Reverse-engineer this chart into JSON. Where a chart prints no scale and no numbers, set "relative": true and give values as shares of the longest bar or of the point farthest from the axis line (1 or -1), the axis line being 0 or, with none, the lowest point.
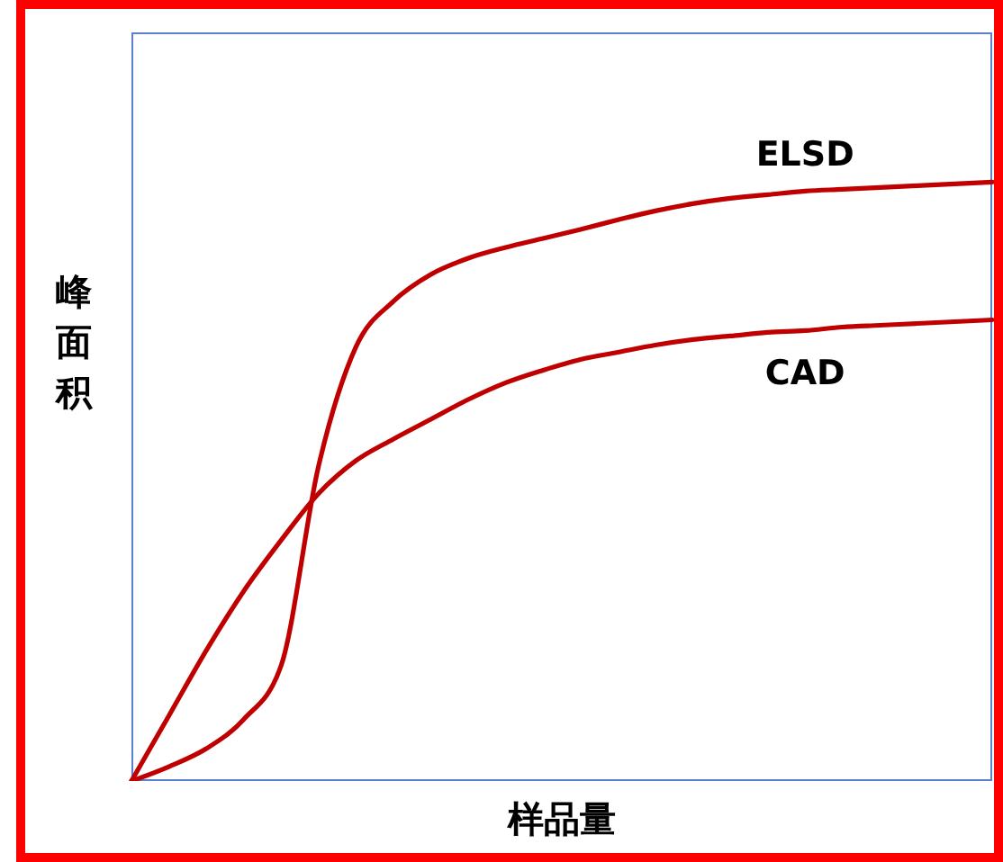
{
  "chart_data": {
    "type": "line",
    "relative": true,
    "xlabel": "样品量",
    "ylabel": "峰面积",
    "categories": [
      null,
      null,
      null,
      null,
      null,
      null,
      null,
      null,
      null,
      null,
      null,
      null,
      null,
      null,
      null,
      null,
      null,
      null,
      null,
      null,
      null,
      null,
      null,
      null
    ],
    "series": [
      {
        "name": "ELSD",
        "color": "#c00000",
        "values": [
          0,
          0.024,
          0.054,
          0.103,
          0.193,
          0.526,
          0.725,
          0.801,
          0.846,
          0.873,
          0.891,
          0.906,
          0.921,
          0.937,
          0.952,
          0.964,
          0.973,
          0.979,
          0.985,
          0.988,
          0.991,
          0.994,
          0.997,
          1
        ]
      },
      {
        "name": "CAD",
        "color": "#c00000",
        "values": [
          0,
          0.109,
          0.218,
          0.317,
          0.402,
          0.48,
          0.535,
          0.571,
          0.604,
          0.637,
          0.665,
          0.686,
          0.704,
          0.716,
          0.728,
          0.737,
          0.743,
          0.749,
          0.752,
          0.758,
          0.761,
          0.764,
          0.767,
          0.77
        ]
      }
    ]
  }
}
